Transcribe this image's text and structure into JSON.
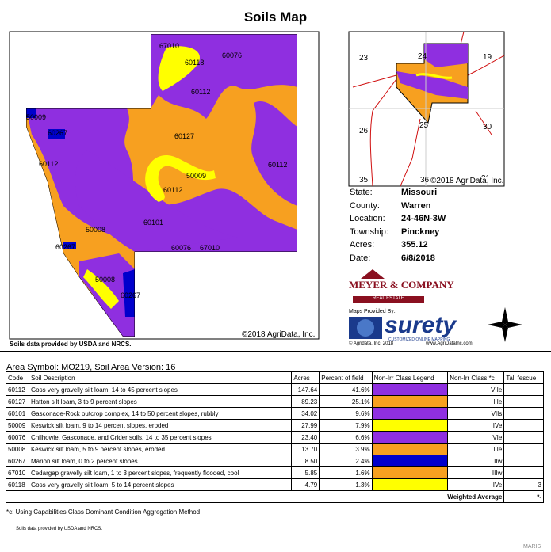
{
  "header": {
    "title": "Soils Map"
  },
  "map": {
    "labels": [
      "67010",
      "60118",
      "60076",
      "60112",
      "50009",
      "60267",
      "60127",
      "60112",
      "50009",
      "60112",
      "60112",
      "60101",
      "50008",
      "60267",
      "60076",
      "67010",
      "50008",
      "60267"
    ],
    "copyright": "©2018 AgriData, Inc.",
    "source": "Soils data provided by USDA and NRCS."
  },
  "inset": {
    "labels": [
      "23",
      "24",
      "19",
      "26",
      "25",
      "30",
      "35",
      "36",
      "31"
    ],
    "copyright": "©2018 AgriData, Inc."
  },
  "info": [
    {
      "label": "State:",
      "value": "Missouri"
    },
    {
      "label": "County:",
      "value": "Warren"
    },
    {
      "label": "Location:",
      "value": "24-46N-3W"
    },
    {
      "label": "Township:",
      "value": "Pinckney"
    },
    {
      "label": "Acres:",
      "value": "355.12"
    },
    {
      "label": "Date:",
      "value": "6/8/2018"
    }
  ],
  "logos": {
    "realtor": "MEYER & COMPANY",
    "realtor_sub": "REAL ESTATE",
    "provided_by": "Maps Provided By:",
    "brand": "surety",
    "brand_sub": "CUSTOMIZED ONLINE MAPPING",
    "brand_copyright": "© Agridata, Inc. 2018",
    "brand_url": "www.AgriDataInc.com"
  },
  "table": {
    "caption": "Area Symbol: MO219, Soil Area Version: 16",
    "headers": [
      "Code",
      "Soil Description",
      "Acres",
      "Percent of field",
      "Non-Irr Class Legend",
      "Non-Irr Class *c",
      "Tall fescue"
    ],
    "rows": [
      {
        "code": "60112",
        "description": "Goss very gravelly silt loam, 14 to 45 percent slopes",
        "acres": "147.64",
        "percent": "41.6%",
        "legend_color": "#8f2fe0",
        "class": "VIIe",
        "tall_fescue": null
      },
      {
        "code": "60127",
        "description": "Hatton silt loam, 3 to 9 percent slopes",
        "acres": "89.23",
        "percent": "25.1%",
        "legend_color": "#f7a020",
        "class": "IIIe",
        "tall_fescue": null
      },
      {
        "code": "60101",
        "description": "Gasconade-Rock outcrop complex, 14 to 50 percent slopes, rubbly",
        "acres": "34.02",
        "percent": "9.6%",
        "legend_color": "#8f2fe0",
        "class": "VIIs",
        "tall_fescue": null
      },
      {
        "code": "50009",
        "description": "Keswick silt loam, 9 to 14 percent slopes, eroded",
        "acres": "27.99",
        "percent": "7.9%",
        "legend_color": "#ffff00",
        "class": "IVe",
        "tall_fescue": null
      },
      {
        "code": "60076",
        "description": "Chilhowie, Gasconade, and Crider soils, 14 to 35 percent slopes",
        "acres": "23.40",
        "percent": "6.6%",
        "legend_color": "#8f2fe0",
        "class": "VIe",
        "tall_fescue": null
      },
      {
        "code": "50008",
        "description": "Keswick silt loam, 5 to 9 percent slopes, eroded",
        "acres": "13.70",
        "percent": "3.9%",
        "legend_color": "#f7a020",
        "class": "IIIe",
        "tall_fescue": null
      },
      {
        "code": "60267",
        "description": "Marion silt loam, 0 to 2 percent slopes",
        "acres": "8.50",
        "percent": "2.4%",
        "legend_color": "#0000cc",
        "class": "IIw",
        "tall_fescue": null
      },
      {
        "code": "67010",
        "description": "Cedargap gravelly silt loam, 1 to 3 percent slopes, frequently flooded, cool",
        "acres": "5.85",
        "percent": "1.6%",
        "legend_color": "#f7a020",
        "class": "IIIw",
        "tall_fescue": null
      },
      {
        "code": "60118",
        "description": "Goss very gravelly silt loam, 5 to 14 percent slopes",
        "acres": "4.79",
        "percent": "1.3%",
        "legend_color": "#ffff00",
        "class": "IVe",
        "tall_fescue": "3"
      }
    ],
    "weighted_label": "Weighted Average",
    "weighted_value": "*-"
  },
  "footer": {
    "footnote": "*c: Using Capabilities Class Dominant Condition Aggregation Method",
    "source": "Soils data provided by USDA and NRCS.",
    "watermark": "MARIS"
  }
}
